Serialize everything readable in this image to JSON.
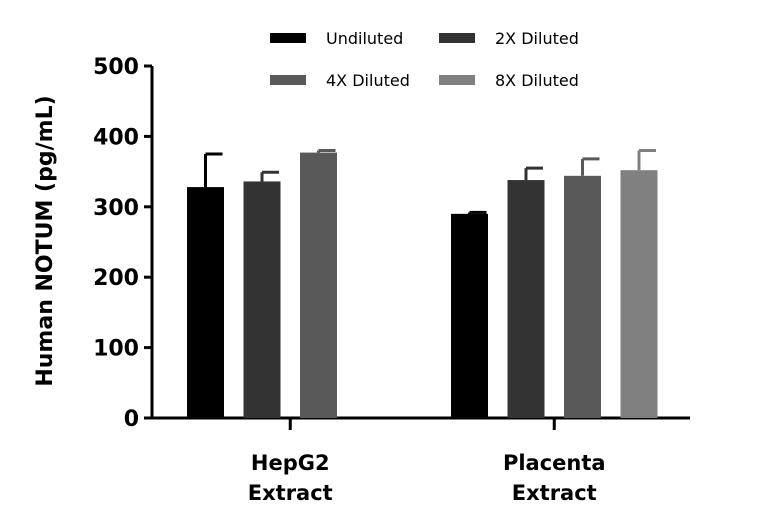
{
  "chart_data": {
    "type": "bar",
    "title": "",
    "xlabel": "",
    "ylabel": "Human NOTUM (pg/mL)",
    "ylim": [
      0,
      500
    ],
    "yticks": [
      0,
      100,
      200,
      300,
      400,
      500
    ],
    "grid": false,
    "legend_position": "top",
    "categories": [
      {
        "line1": "HepG2",
        "line2": "Extract"
      },
      {
        "line1": "Placenta",
        "line2": "Extract"
      }
    ],
    "series": [
      {
        "name": "Undiluted",
        "color": "#000000",
        "values": [
          328,
          290
        ],
        "errors": [
          47,
          2
        ]
      },
      {
        "name": "2X Diluted",
        "color": "#333333",
        "values": [
          336,
          338
        ],
        "errors": [
          13,
          17
        ]
      },
      {
        "name": "4X Diluted",
        "color": "#595959",
        "values": [
          377,
          344
        ],
        "errors": [
          3,
          24
        ]
      },
      {
        "name": "8X Diluted",
        "color": "#808080",
        "values": [
          null,
          352
        ],
        "errors": [
          null,
          28
        ]
      }
    ]
  }
}
